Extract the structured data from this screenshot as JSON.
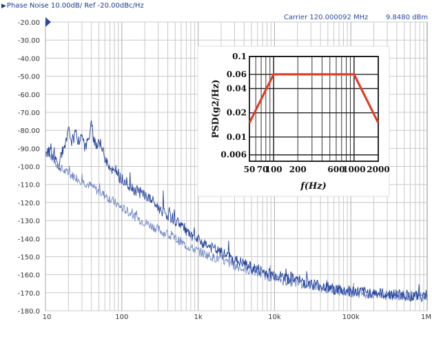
{
  "header": {
    "title": "Phase Noise 10.00dB/ Ref -20.00dBc/Hz",
    "carrier_label": "Carrier 120.000092 MHz",
    "carrier_power": "9.8480 dBm"
  },
  "colors": {
    "trace_dark": "#1f3f9a",
    "trace_light": "#6f86c6",
    "grid": "#c8c8c8",
    "ref_marker": "#2a4aa0",
    "inset_line": "#e03c28"
  },
  "chart_data": [
    {
      "type": "line",
      "title": "Phase Noise 10.00dB/ Ref -20.00dBc/Hz",
      "xscale": "log",
      "xlim": [
        10,
        1000000
      ],
      "ylim": [
        -180,
        -20
      ],
      "yticks": [
        "-20.00",
        "-30.00",
        "-40.00",
        "-50.00",
        "-60.00",
        "-70.00",
        "-80.00",
        "-90.00",
        "-100.0",
        "-110.0",
        "-120.0",
        "-130.0",
        "-140.0",
        "-150.0",
        "-160.0",
        "-170.0",
        "-180.0"
      ],
      "xticks": [
        {
          "value": 10,
          "label": "10"
        },
        {
          "value": 100,
          "label": "100"
        },
        {
          "value": 1000,
          "label": "1k"
        },
        {
          "value": 10000,
          "label": "10k"
        },
        {
          "value": 100000,
          "label": "100k"
        },
        {
          "value": 1000000,
          "label": "1M"
        }
      ],
      "grid": true,
      "reference_level": -20,
      "series": [
        {
          "color": "#1f3f9a",
          "x": [
            10,
            12,
            15,
            18,
            20,
            22,
            25,
            28,
            30,
            33,
            36,
            40,
            45,
            50,
            60,
            70,
            80,
            100,
            120,
            150,
            200,
            250,
            300,
            400,
            500,
            600,
            700,
            800,
            1000,
            1200,
            1500,
            2000,
            2500,
            3000,
            4000,
            5000,
            6000,
            7000,
            8000,
            10000,
            12000,
            15000,
            20000,
            25000,
            30000,
            40000,
            50000,
            60000,
            70000,
            80000,
            100000,
            150000,
            200000,
            300000,
            500000,
            700000,
            1000000
          ],
          "y": [
            -91,
            -93,
            -99,
            -90,
            -80,
            -86,
            -82,
            -88,
            -80,
            -90,
            -86,
            -77,
            -90,
            -85,
            -95,
            -100,
            -104,
            -107,
            -110,
            -113,
            -116,
            -119,
            -123,
            -127,
            -130,
            -132,
            -136,
            -139,
            -141,
            -143,
            -145,
            -148,
            -150,
            -152,
            -154,
            -156,
            -157,
            -158,
            -159,
            -160,
            -161,
            -162,
            -163,
            -164,
            -165,
            -166,
            -167,
            -168,
            -168,
            -169,
            -169,
            -170,
            -170,
            -171,
            -171,
            -172,
            -172
          ]
        },
        {
          "color": "#6f86c6",
          "x": [
            10,
            12,
            15,
            18,
            20,
            25,
            30,
            40,
            50,
            60,
            70,
            80,
            100,
            120,
            150,
            200,
            250,
            300,
            400,
            500,
            600,
            700,
            800,
            1000,
            1500,
            2000,
            3000,
            4000,
            5000,
            7000,
            10000,
            15000,
            20000,
            30000,
            50000,
            70000,
            100000,
            200000,
            300000,
            500000,
            1000000
          ],
          "y": [
            -92,
            -95,
            -100,
            -103,
            -104,
            -106,
            -108,
            -111,
            -114,
            -116,
            -118,
            -120,
            -123,
            -125,
            -128,
            -131,
            -133,
            -135,
            -138,
            -140,
            -142,
            -144,
            -145,
            -147,
            -150,
            -152,
            -155,
            -157,
            -158,
            -160,
            -162,
            -164,
            -165,
            -166,
            -168,
            -169,
            -170,
            -171,
            -171,
            -172,
            -172
          ]
        }
      ]
    },
    {
      "type": "line",
      "xlabel": "f(Hz)",
      "ylabel": "PSD(g2/Hz)",
      "xscale": "log",
      "yscale": "log",
      "xlim": [
        50,
        2000
      ],
      "ylim": [
        0.005,
        0.1
      ],
      "xticks": [
        {
          "value": 50,
          "label": "50"
        },
        {
          "value": 70,
          "label": "70"
        },
        {
          "value": 100,
          "label": "100"
        },
        {
          "value": 200,
          "label": "200"
        },
        {
          "value": 600,
          "label": "600"
        },
        {
          "value": 1000,
          "label": "1000"
        },
        {
          "value": 2000,
          "label": "2000"
        }
      ],
      "yticks": [
        {
          "value": 0.1,
          "label": "0.1"
        },
        {
          "value": 0.06,
          "label": "0.06"
        },
        {
          "value": 0.04,
          "label": "0.04"
        },
        {
          "value": 0.02,
          "label": "0.02"
        },
        {
          "value": 0.01,
          "label": "0.01"
        },
        {
          "value": 0.006,
          "label": "0.006"
        }
      ],
      "grid": true,
      "series": [
        {
          "color": "#e03c28",
          "x": [
            50,
            100,
            1000,
            2000
          ],
          "y": [
            0.015,
            0.06,
            0.06,
            0.015
          ]
        }
      ]
    }
  ]
}
